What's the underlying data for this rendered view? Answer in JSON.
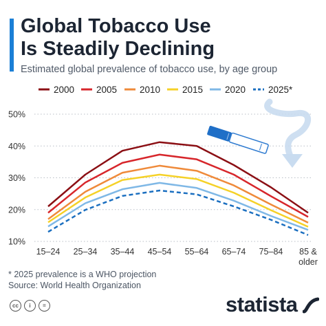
{
  "header": {
    "title_line1": "Global Tobacco Use",
    "title_line2": "Is Steadily Declining",
    "subtitle": "Estimated global prevalence of tobacco use, by age group"
  },
  "chart_data": {
    "type": "line",
    "title": "Global Tobacco Use Is Steadily Declining",
    "subtitle": "Estimated global prevalence of tobacco use, by age group",
    "categories": [
      "15–24",
      "25–34",
      "35–44",
      "45–54",
      "55–64",
      "65–74",
      "75–84",
      "85 & older"
    ],
    "category_labels": [
      [
        "15–24"
      ],
      [
        "25–34"
      ],
      [
        "35–44"
      ],
      [
        "45–54"
      ],
      [
        "55–64"
      ],
      [
        "65–74"
      ],
      [
        "75–84"
      ],
      [
        "85 &",
        "older"
      ]
    ],
    "y_ticks": [
      "10%",
      "20%",
      "30%",
      "40%",
      "50%"
    ],
    "ylim": [
      10,
      50
    ],
    "grid": "horizontal dotted",
    "legend_position": "top",
    "series": [
      {
        "name": "2000",
        "color": "#8b0f14",
        "dashed": false,
        "values": [
          21,
          31,
          38.5,
          41.2,
          40,
          34,
          27,
          19
        ]
      },
      {
        "name": "2005",
        "color": "#d7262b",
        "dashed": false,
        "values": [
          19,
          28.5,
          34.7,
          37.3,
          35.8,
          31,
          24.2,
          17.7
        ]
      },
      {
        "name": "2010",
        "color": "#ef8a3a",
        "dashed": false,
        "values": [
          17,
          25.6,
          31.6,
          33.8,
          32.2,
          27.6,
          21.6,
          15.9
        ]
      },
      {
        "name": "2015",
        "color": "#f5d127",
        "dashed": false,
        "values": [
          16,
          23.8,
          29.3,
          31,
          29.6,
          25.3,
          19.8,
          14.6
        ]
      },
      {
        "name": "2020",
        "color": "#7fb8e6",
        "dashed": false,
        "values": [
          14.7,
          22,
          26.4,
          28.4,
          26.8,
          22.8,
          18,
          13.6
        ]
      },
      {
        "name": "2025*",
        "color": "#1b6fc0",
        "dashed": true,
        "values": [
          13,
          19.9,
          24.3,
          26,
          24.8,
          21,
          16.8,
          12
        ]
      }
    ]
  },
  "footnote": {
    "line1": "* 2025 prevalence is a WHO projection",
    "line2": "Source: World Health Organization"
  },
  "branding": {
    "logo_text": "statista",
    "license_icons": [
      "cc",
      "i",
      "="
    ]
  }
}
